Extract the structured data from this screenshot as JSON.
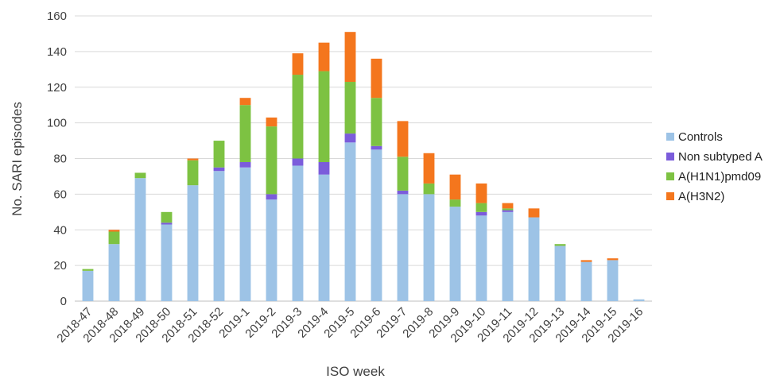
{
  "chart_data": {
    "type": "bar",
    "stacked": true,
    "categories": [
      "2018-47",
      "2018-48",
      "2018-49",
      "2018-50",
      "2018-51",
      "2018-52",
      "2019-1",
      "2019-2",
      "2019-3",
      "2019-4",
      "2019-5",
      "2019-6",
      "2019-7",
      "2019-8",
      "2019-9",
      "2019-10",
      "2019-11",
      "2019-12",
      "2019-13",
      "2019-14",
      "2019-15",
      "2019-16"
    ],
    "series": [
      {
        "name": "Controls",
        "color": "#9DC3E6",
        "values": [
          17,
          32,
          69,
          43,
          65,
          73,
          75,
          57,
          76,
          71,
          89,
          85,
          60,
          60,
          53,
          48,
          50,
          47,
          31,
          22,
          23,
          1
        ]
      },
      {
        "name": "Non subtyped A",
        "color": "#7B5CDB",
        "values": [
          0,
          0,
          0,
          1,
          0,
          2,
          3,
          3,
          4,
          7,
          5,
          2,
          2,
          0,
          0,
          2,
          1,
          0,
          0,
          0,
          0,
          0
        ]
      },
      {
        "name": "A(H1N1)pmd09",
        "color": "#7DC242",
        "values": [
          1,
          7,
          3,
          6,
          14,
          15,
          32,
          38,
          47,
          51,
          29,
          27,
          19,
          6,
          4,
          5,
          1,
          0,
          1,
          0,
          0,
          0
        ]
      },
      {
        "name": "A(H3N2)",
        "color": "#F4761D",
        "values": [
          0,
          1,
          0,
          0,
          1,
          0,
          4,
          5,
          12,
          16,
          28,
          22,
          20,
          17,
          14,
          11,
          3,
          5,
          0,
          1,
          1,
          0
        ]
      }
    ],
    "xlabel": "ISO week",
    "ylabel": "No. SARI episodes",
    "ylim": [
      0,
      160
    ],
    "yticks": [
      0,
      20,
      40,
      60,
      80,
      100,
      120,
      140,
      160
    ],
    "grid": true,
    "legend_position": "right"
  }
}
